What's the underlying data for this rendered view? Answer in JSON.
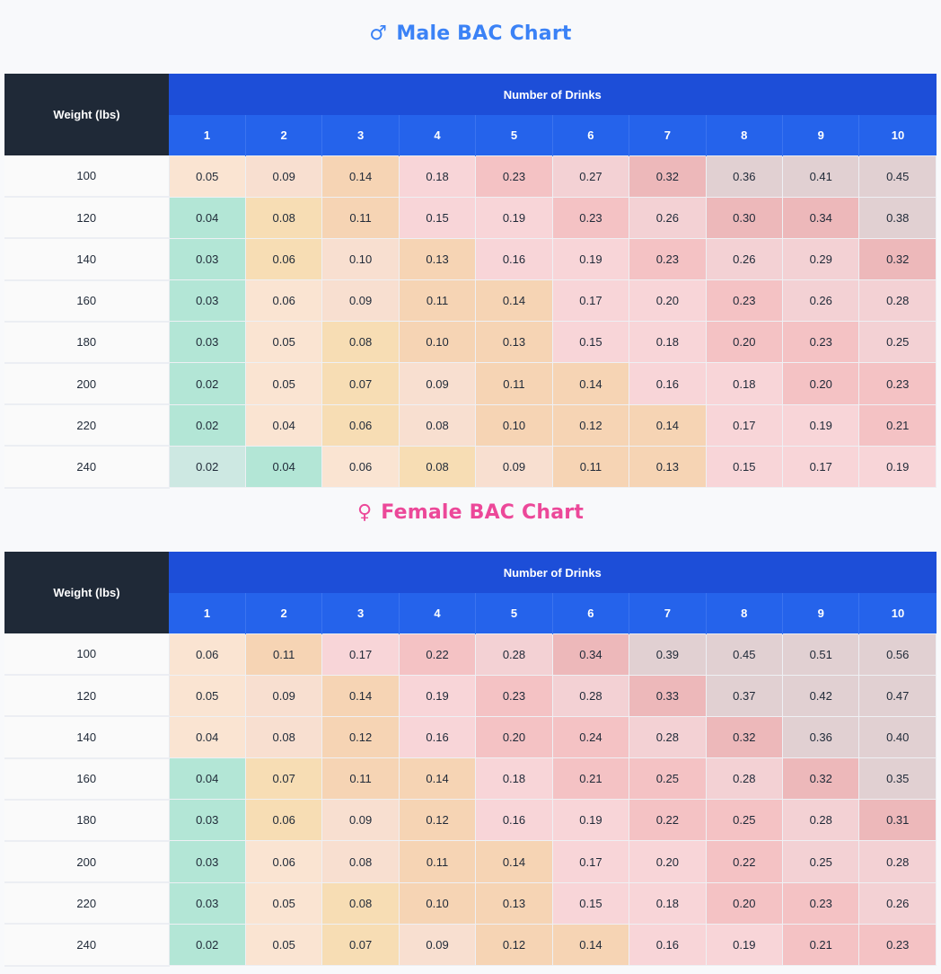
{
  "charts": [
    {
      "id": "male",
      "symbol": "♂",
      "title": "Male BAC Chart",
      "title_color": "#3b82f6",
      "row_header": "Weight (lbs)",
      "column_group_header": "Number of Drinks",
      "columns": [
        "1",
        "2",
        "3",
        "4",
        "5",
        "6",
        "7",
        "8",
        "9",
        "10"
      ],
      "rows": [
        {
          "weight": "100",
          "values": [
            "0.05",
            "0.09",
            "0.14",
            "0.18",
            "0.23",
            "0.27",
            "0.32",
            "0.36",
            "0.41",
            "0.45"
          ],
          "colors": [
            "peach",
            "peach2",
            "tan",
            "pink",
            "rose",
            "pink2",
            "rose2",
            "mauve",
            "mauve",
            "mauve"
          ]
        },
        {
          "weight": "120",
          "values": [
            "0.04",
            "0.08",
            "0.11",
            "0.15",
            "0.19",
            "0.23",
            "0.26",
            "0.30",
            "0.34",
            "0.38"
          ],
          "colors": [
            "mint",
            "sand",
            "tan",
            "pink",
            "pink",
            "rose",
            "pink2",
            "rose2",
            "rose2",
            "mauve"
          ]
        },
        {
          "weight": "140",
          "values": [
            "0.03",
            "0.06",
            "0.10",
            "0.13",
            "0.16",
            "0.19",
            "0.23",
            "0.26",
            "0.29",
            "0.32"
          ],
          "colors": [
            "mint",
            "sand",
            "peach2",
            "tan",
            "pink",
            "pink",
            "rose",
            "pink2",
            "pink2",
            "rose2"
          ]
        },
        {
          "weight": "160",
          "values": [
            "0.03",
            "0.06",
            "0.09",
            "0.11",
            "0.14",
            "0.17",
            "0.20",
            "0.23",
            "0.26",
            "0.28"
          ],
          "colors": [
            "mint",
            "peach",
            "peach2",
            "tan",
            "tan",
            "pink",
            "pink",
            "rose",
            "pink2",
            "pink2"
          ]
        },
        {
          "weight": "180",
          "values": [
            "0.03",
            "0.05",
            "0.08",
            "0.10",
            "0.13",
            "0.15",
            "0.18",
            "0.20",
            "0.23",
            "0.25"
          ],
          "colors": [
            "mint",
            "peach",
            "sand",
            "tan",
            "tan",
            "pink",
            "pink",
            "rose",
            "rose",
            "pink2"
          ]
        },
        {
          "weight": "200",
          "values": [
            "0.02",
            "0.05",
            "0.07",
            "0.09",
            "0.11",
            "0.14",
            "0.16",
            "0.18",
            "0.20",
            "0.23"
          ],
          "colors": [
            "mint",
            "peach",
            "sand",
            "peach2",
            "tan",
            "tan",
            "pink",
            "pink",
            "rose",
            "rose"
          ]
        },
        {
          "weight": "220",
          "values": [
            "0.02",
            "0.04",
            "0.06",
            "0.08",
            "0.10",
            "0.12",
            "0.14",
            "0.17",
            "0.19",
            "0.21"
          ],
          "colors": [
            "mint",
            "peach",
            "sand",
            "peach2",
            "tan",
            "tan",
            "tan",
            "pink",
            "pink",
            "rose"
          ]
        },
        {
          "weight": "240",
          "values": [
            "0.02",
            "0.04",
            "0.06",
            "0.08",
            "0.09",
            "0.11",
            "0.13",
            "0.15",
            "0.17",
            "0.19"
          ],
          "colors": [
            "mintl",
            "mint",
            "peach",
            "sand",
            "peach2",
            "tan",
            "tan",
            "pink",
            "pink",
            "pink"
          ]
        }
      ]
    },
    {
      "id": "female",
      "symbol": "♀",
      "title": "Female BAC Chart",
      "title_color": "#ec4899",
      "row_header": "Weight (lbs)",
      "column_group_header": "Number of Drinks",
      "columns": [
        "1",
        "2",
        "3",
        "4",
        "5",
        "6",
        "7",
        "8",
        "9",
        "10"
      ],
      "rows": [
        {
          "weight": "100",
          "values": [
            "0.06",
            "0.11",
            "0.17",
            "0.22",
            "0.28",
            "0.34",
            "0.39",
            "0.45",
            "0.51",
            "0.56"
          ],
          "colors": [
            "peach",
            "tan",
            "pink",
            "rose",
            "pink2",
            "rose2",
            "mauve",
            "mauve",
            "mauve",
            "mauve"
          ]
        },
        {
          "weight": "120",
          "values": [
            "0.05",
            "0.09",
            "0.14",
            "0.19",
            "0.23",
            "0.28",
            "0.33",
            "0.37",
            "0.42",
            "0.47"
          ],
          "colors": [
            "peach",
            "peach2",
            "tan",
            "pink",
            "rose",
            "pink2",
            "rose2",
            "mauve",
            "mauve",
            "mauve"
          ]
        },
        {
          "weight": "140",
          "values": [
            "0.04",
            "0.08",
            "0.12",
            "0.16",
            "0.20",
            "0.24",
            "0.28",
            "0.32",
            "0.36",
            "0.40"
          ],
          "colors": [
            "peach",
            "peach2",
            "tan",
            "pink",
            "rose",
            "rose",
            "pink2",
            "rose2",
            "mauve",
            "mauve"
          ]
        },
        {
          "weight": "160",
          "values": [
            "0.04",
            "0.07",
            "0.11",
            "0.14",
            "0.18",
            "0.21",
            "0.25",
            "0.28",
            "0.32",
            "0.35"
          ],
          "colors": [
            "mint",
            "sand",
            "tan",
            "tan",
            "pink",
            "rose",
            "rose",
            "pink2",
            "rose2",
            "mauve"
          ]
        },
        {
          "weight": "180",
          "values": [
            "0.03",
            "0.06",
            "0.09",
            "0.12",
            "0.16",
            "0.19",
            "0.22",
            "0.25",
            "0.28",
            "0.31"
          ],
          "colors": [
            "mint",
            "sand",
            "peach2",
            "tan",
            "pink",
            "pink",
            "rose",
            "rose",
            "pink2",
            "rose2"
          ]
        },
        {
          "weight": "200",
          "values": [
            "0.03",
            "0.06",
            "0.08",
            "0.11",
            "0.14",
            "0.17",
            "0.20",
            "0.22",
            "0.25",
            "0.28"
          ],
          "colors": [
            "mint",
            "peach",
            "peach2",
            "tan",
            "tan",
            "pink",
            "pink",
            "rose",
            "pink2",
            "pink2"
          ]
        },
        {
          "weight": "220",
          "values": [
            "0.03",
            "0.05",
            "0.08",
            "0.10",
            "0.13",
            "0.15",
            "0.18",
            "0.20",
            "0.23",
            "0.26"
          ],
          "colors": [
            "mint",
            "peach",
            "sand",
            "tan",
            "tan",
            "pink",
            "pink",
            "rose",
            "rose",
            "pink2"
          ]
        },
        {
          "weight": "240",
          "values": [
            "0.02",
            "0.05",
            "0.07",
            "0.09",
            "0.12",
            "0.14",
            "0.16",
            "0.19",
            "0.21",
            "0.23"
          ],
          "colors": [
            "mint",
            "peach",
            "sand",
            "peach2",
            "tan",
            "tan",
            "pink",
            "pink",
            "rose",
            "rose"
          ]
        }
      ]
    }
  ],
  "chart_data": [
    {
      "type": "heatmap",
      "title": "Male BAC Chart",
      "xlabel": "Number of Drinks",
      "ylabel": "Weight (lbs)",
      "x": [
        1,
        2,
        3,
        4,
        5,
        6,
        7,
        8,
        9,
        10
      ],
      "y": [
        100,
        120,
        140,
        160,
        180,
        200,
        220,
        240
      ],
      "values": [
        [
          0.05,
          0.09,
          0.14,
          0.18,
          0.23,
          0.27,
          0.32,
          0.36,
          0.41,
          0.45
        ],
        [
          0.04,
          0.08,
          0.11,
          0.15,
          0.19,
          0.23,
          0.26,
          0.3,
          0.34,
          0.38
        ],
        [
          0.03,
          0.06,
          0.1,
          0.13,
          0.16,
          0.19,
          0.23,
          0.26,
          0.29,
          0.32
        ],
        [
          0.03,
          0.06,
          0.09,
          0.11,
          0.14,
          0.17,
          0.2,
          0.23,
          0.26,
          0.28
        ],
        [
          0.03,
          0.05,
          0.08,
          0.1,
          0.13,
          0.15,
          0.18,
          0.2,
          0.23,
          0.25
        ],
        [
          0.02,
          0.05,
          0.07,
          0.09,
          0.11,
          0.14,
          0.16,
          0.18,
          0.2,
          0.23
        ],
        [
          0.02,
          0.04,
          0.06,
          0.08,
          0.1,
          0.12,
          0.14,
          0.17,
          0.19,
          0.21
        ],
        [
          0.02,
          0.04,
          0.06,
          0.08,
          0.09,
          0.11,
          0.13,
          0.15,
          0.17,
          0.19
        ]
      ]
    },
    {
      "type": "heatmap",
      "title": "Female BAC Chart",
      "xlabel": "Number of Drinks",
      "ylabel": "Weight (lbs)",
      "x": [
        1,
        2,
        3,
        4,
        5,
        6,
        7,
        8,
        9,
        10
      ],
      "y": [
        100,
        120,
        140,
        160,
        180,
        200,
        220,
        240
      ],
      "values": [
        [
          0.06,
          0.11,
          0.17,
          0.22,
          0.28,
          0.34,
          0.39,
          0.45,
          0.51,
          0.56
        ],
        [
          0.05,
          0.09,
          0.14,
          0.19,
          0.23,
          0.28,
          0.33,
          0.37,
          0.42,
          0.47
        ],
        [
          0.04,
          0.08,
          0.12,
          0.16,
          0.2,
          0.24,
          0.28,
          0.32,
          0.36,
          0.4
        ],
        [
          0.04,
          0.07,
          0.11,
          0.14,
          0.18,
          0.21,
          0.25,
          0.28,
          0.32,
          0.35
        ],
        [
          0.03,
          0.06,
          0.09,
          0.12,
          0.16,
          0.19,
          0.22,
          0.25,
          0.28,
          0.31
        ],
        [
          0.03,
          0.06,
          0.08,
          0.11,
          0.14,
          0.17,
          0.2,
          0.22,
          0.25,
          0.28
        ],
        [
          0.03,
          0.05,
          0.08,
          0.1,
          0.13,
          0.15,
          0.18,
          0.2,
          0.23,
          0.26
        ],
        [
          0.02,
          0.05,
          0.07,
          0.09,
          0.12,
          0.14,
          0.16,
          0.19,
          0.21,
          0.23
        ]
      ]
    }
  ]
}
